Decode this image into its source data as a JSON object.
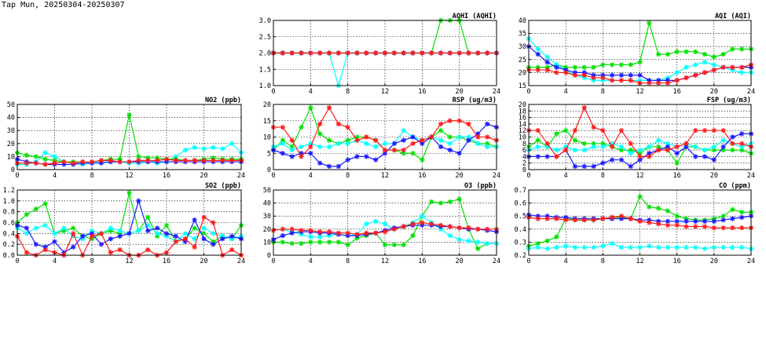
{
  "page": {
    "title": "Tap Mun, 20250304-20250307"
  },
  "colors": {
    "green": "#00e000",
    "red": "#ff1a1a",
    "blue": "#1a1aff",
    "cyan": "#00ffff"
  },
  "chart_data": [
    {
      "type": "line",
      "title": "AQHI (AQHI)",
      "xlim": [
        0,
        24
      ],
      "ylim": [
        1.0,
        3.0
      ],
      "xticks": [
        0,
        4,
        8,
        12,
        16,
        20,
        24
      ],
      "yticks": [
        1.0,
        1.5,
        2.0,
        2.5,
        3.0
      ],
      "ytick_decimals": 1,
      "grid": true,
      "series": [
        {
          "color": "green",
          "values": [
            2,
            2,
            2,
            2,
            2,
            2,
            2,
            2,
            2,
            2,
            2,
            2,
            2,
            2,
            2,
            2,
            2,
            2,
            3,
            3,
            3,
            2,
            2,
            2,
            2
          ]
        },
        {
          "color": "cyan",
          "values": [
            2,
            2,
            2,
            2,
            2,
            2,
            2,
            1,
            2,
            2,
            2,
            2,
            2,
            2,
            2,
            2,
            2,
            2,
            2,
            2,
            2,
            2,
            2,
            2,
            2
          ]
        },
        {
          "color": "blue",
          "values": [
            2,
            2,
            2,
            2,
            2,
            2,
            2,
            2,
            2,
            2,
            2,
            2,
            2,
            2,
            2,
            2,
            2,
            2,
            2,
            2,
            2,
            2,
            2,
            2,
            2
          ]
        },
        {
          "color": "red",
          "values": [
            2,
            2,
            2,
            2,
            2,
            2,
            2,
            2,
            2,
            2,
            2,
            2,
            2,
            2,
            2,
            2,
            2,
            2,
            2,
            2,
            2,
            2,
            2,
            2,
            2
          ]
        }
      ]
    },
    {
      "type": "line",
      "title": "AQI (AQI)",
      "xlim": [
        0,
        24
      ],
      "ylim": [
        15,
        40
      ],
      "xticks": [
        0,
        4,
        8,
        12,
        16,
        20,
        24
      ],
      "yticks": [
        15,
        20,
        25,
        30,
        35,
        40
      ],
      "ytick_decimals": 0,
      "grid": true,
      "series": [
        {
          "color": "green",
          "values": [
            22,
            22,
            22,
            23,
            22,
            22,
            22,
            22,
            23,
            23,
            23,
            23,
            24,
            39,
            27,
            27,
            28,
            28,
            28,
            27,
            26,
            27,
            29,
            29,
            29
          ]
        },
        {
          "color": "cyan",
          "values": [
            33,
            29,
            26,
            23,
            21,
            19,
            18,
            17,
            17,
            17,
            17,
            17,
            17,
            17,
            17,
            18,
            20,
            22,
            23,
            24,
            23,
            22,
            21,
            20,
            20
          ]
        },
        {
          "color": "blue",
          "values": [
            30,
            27,
            24,
            22,
            21,
            20,
            20,
            19,
            19,
            19,
            19,
            19,
            19,
            17,
            17,
            17,
            17,
            18,
            19,
            20,
            21,
            22,
            22,
            22,
            22
          ]
        },
        {
          "color": "red",
          "values": [
            21,
            21,
            21,
            20,
            20,
            19,
            19,
            18,
            18,
            17,
            17,
            17,
            16,
            16,
            16,
            16,
            17,
            18,
            19,
            20,
            21,
            22,
            22,
            22,
            23
          ]
        }
      ]
    },
    {
      "type": "line",
      "title": "NO2 (ppb)",
      "xlim": [
        0,
        24
      ],
      "ylim": [
        0,
        50
      ],
      "xticks": [
        0,
        4,
        8,
        12,
        16,
        20,
        24
      ],
      "yticks": [
        0,
        10,
        20,
        30,
        40,
        50
      ],
      "ytick_decimals": 0,
      "grid": true,
      "series": [
        {
          "color": "cyan",
          "values": [
            4,
            4,
            6,
            13,
            10,
            6,
            5,
            4,
            5,
            6,
            6,
            6,
            5,
            5,
            6,
            5,
            6,
            10,
            15,
            17,
            16,
            17,
            16,
            20,
            13
          ]
        },
        {
          "color": "green",
          "values": [
            13,
            11,
            10,
            8,
            7,
            6,
            6,
            6,
            6,
            7,
            8,
            8,
            42,
            10,
            9,
            9,
            8,
            8,
            7,
            7,
            8,
            9,
            8,
            8,
            8
          ]
        },
        {
          "color": "blue",
          "values": [
            8,
            6,
            5,
            4,
            4,
            4,
            4,
            5,
            5,
            5,
            6,
            6,
            6,
            6,
            6,
            6,
            6,
            6,
            6,
            6,
            6,
            6,
            6,
            6,
            6
          ]
        },
        {
          "color": "red",
          "values": [
            5,
            5,
            5,
            4,
            5,
            6,
            5,
            6,
            6,
            7,
            7,
            6,
            6,
            7,
            7,
            7,
            8,
            7,
            7,
            7,
            7,
            7,
            7,
            7,
            7
          ]
        }
      ]
    },
    {
      "type": "line",
      "title": "RSP (ug/m3)",
      "xlim": [
        0,
        24
      ],
      "ylim": [
        0,
        20
      ],
      "xticks": [
        0,
        4,
        8,
        12,
        16,
        20,
        24
      ],
      "yticks": [
        0,
        5,
        10,
        15,
        20
      ],
      "ytick_decimals": 0,
      "grid": true,
      "series": [
        {
          "color": "green",
          "values": [
            6,
            9,
            7,
            13,
            19,
            11,
            9,
            8,
            9,
            10,
            10,
            9,
            6,
            6,
            5,
            5,
            3,
            10,
            12,
            10,
            10,
            9,
            8,
            8,
            7
          ]
        },
        {
          "color": "cyan",
          "values": [
            7,
            8,
            6,
            7,
            8,
            7,
            7,
            8,
            8,
            9,
            8,
            7,
            8,
            8,
            12,
            10,
            9,
            10,
            9,
            8,
            10,
            10,
            8,
            7,
            7
          ]
        },
        {
          "color": "blue",
          "values": [
            6,
            5,
            4,
            5,
            5,
            2,
            1,
            1,
            3,
            4,
            4,
            3,
            5,
            8,
            9,
            10,
            8,
            10,
            7,
            6,
            5,
            9,
            11,
            14,
            13
          ]
        },
        {
          "color": "red",
          "values": [
            13,
            13,
            9,
            4,
            7,
            14,
            19,
            14,
            13,
            9,
            10,
            9,
            6,
            6,
            6,
            8,
            9,
            10,
            14,
            15,
            15,
            14,
            10,
            10,
            9
          ]
        }
      ]
    },
    {
      "type": "line",
      "title": "FSP (ug/m3)",
      "xlim": [
        0,
        24
      ],
      "ylim": [
        0,
        20
      ],
      "xticks": [
        0,
        4,
        8,
        12,
        16,
        20,
        24
      ],
      "yticks": [
        0,
        2,
        4,
        6,
        8,
        10,
        12,
        14,
        16,
        18,
        20
      ],
      "ytick_decimals": 0,
      "grid": true,
      "series": [
        {
          "color": "green",
          "values": [
            7,
            9,
            7,
            11,
            12,
            9,
            8,
            8,
            8,
            7,
            6,
            6,
            5,
            7,
            7,
            6,
            2,
            7,
            7,
            6,
            6,
            6,
            6,
            6,
            5
          ]
        },
        {
          "color": "cyan",
          "values": [
            6,
            7,
            7,
            6,
            7,
            6,
            6,
            7,
            7,
            8,
            7,
            5,
            6,
            7,
            9,
            8,
            7,
            8,
            7,
            6,
            7,
            9,
            8,
            7,
            8
          ]
        },
        {
          "color": "blue",
          "values": [
            4,
            4,
            4,
            4,
            6,
            1,
            1,
            1,
            2,
            3,
            3,
            1,
            3,
            5,
            6,
            7,
            5,
            7,
            4,
            4,
            3,
            7,
            10,
            11,
            11
          ]
        },
        {
          "color": "red",
          "values": [
            12,
            12,
            8,
            4,
            6,
            12,
            19,
            13,
            12,
            7,
            12,
            8,
            4,
            4,
            6,
            6,
            7,
            8,
            12,
            12,
            12,
            12,
            8,
            8,
            7
          ]
        }
      ]
    },
    {
      "type": "line",
      "title": "SO2 (ppb)",
      "xlim": [
        0,
        24
      ],
      "ylim": [
        0.0,
        1.2
      ],
      "xticks": [
        0,
        4,
        8,
        12,
        16,
        20,
        24
      ],
      "yticks": [
        0.0,
        0.2,
        0.4,
        0.6,
        0.8,
        1.0,
        1.2
      ],
      "ytick_decimals": 1,
      "grid": true,
      "series": [
        {
          "color": "green",
          "values": [
            0.6,
            0.75,
            0.85,
            0.95,
            0.4,
            0.45,
            0.5,
            0.35,
            0.3,
            0.4,
            0.45,
            0.4,
            1.15,
            0.45,
            0.7,
            0.35,
            0.55,
            0.25,
            0.3,
            0.5,
            0.4,
            0.25,
            0.35,
            0.3,
            0.55
          ]
        },
        {
          "color": "cyan",
          "values": [
            0.5,
            0.4,
            0.5,
            0.55,
            0.4,
            0.5,
            0.35,
            0.3,
            0.45,
            0.4,
            0.5,
            0.45,
            0.4,
            0.45,
            0.55,
            0.4,
            0.35,
            0.25,
            0.4,
            0.3,
            0.5,
            0.4,
            0.35,
            0.3,
            0.35
          ]
        },
        {
          "color": "blue",
          "values": [
            0.55,
            0.5,
            0.2,
            0.15,
            0.25,
            0.05,
            0.15,
            0.35,
            0.4,
            0.2,
            0.3,
            0.35,
            0.4,
            1.0,
            0.45,
            0.5,
            0.4,
            0.35,
            0.25,
            0.65,
            0.3,
            0.2,
            0.3,
            0.35,
            0.3
          ]
        },
        {
          "color": "red",
          "values": [
            0.35,
            0.05,
            0.0,
            0.1,
            0.05,
            0.0,
            0.4,
            0.0,
            0.35,
            0.4,
            0.05,
            0.1,
            0.0,
            0.0,
            0.1,
            0.0,
            0.05,
            0.25,
            0.3,
            0.15,
            0.7,
            0.6,
            0.0,
            0.1,
            0.0
          ]
        }
      ]
    },
    {
      "type": "line",
      "title": "O3 (ppb)",
      "xlim": [
        0,
        24
      ],
      "ylim": [
        0,
        50
      ],
      "xticks": [
        0,
        4,
        8,
        12,
        16,
        20,
        24
      ],
      "yticks": [
        0,
        10,
        20,
        30,
        40,
        50
      ],
      "ytick_decimals": 0,
      "grid": true,
      "series": [
        {
          "color": "green",
          "values": [
            10,
            10,
            9,
            9,
            10,
            10,
            10,
            10,
            8,
            13,
            15,
            17,
            8,
            8,
            8,
            15,
            30,
            41,
            40,
            41,
            43,
            20,
            5,
            9,
            9
          ]
        },
        {
          "color": "cyan",
          "values": [
            19,
            20,
            18,
            16,
            14,
            14,
            15,
            16,
            15,
            16,
            24,
            26,
            24,
            20,
            22,
            25,
            30,
            25,
            20,
            15,
            12,
            11,
            10,
            9,
            9
          ]
        },
        {
          "color": "blue",
          "values": [
            12,
            15,
            17,
            18,
            18,
            17,
            17,
            16,
            15,
            15,
            16,
            17,
            19,
            21,
            22,
            23,
            23,
            23,
            22,
            22,
            21,
            20,
            20,
            19,
            18
          ]
        },
        {
          "color": "red",
          "values": [
            19,
            20,
            20,
            19,
            19,
            18,
            18,
            17,
            17,
            16,
            17,
            17,
            18,
            20,
            22,
            24,
            25,
            24,
            23,
            22,
            21,
            21,
            20,
            20,
            20
          ]
        }
      ]
    },
    {
      "type": "line",
      "title": "CO (ppm)",
      "xlim": [
        0,
        24
      ],
      "ylim": [
        0.2,
        0.7
      ],
      "xticks": [
        0,
        4,
        8,
        12,
        16,
        20,
        24
      ],
      "yticks": [
        0.2,
        0.3,
        0.4,
        0.5,
        0.6,
        0.7
      ],
      "ytick_decimals": 1,
      "grid": true,
      "series": [
        {
          "color": "green",
          "values": [
            0.27,
            0.29,
            0.31,
            0.34,
            0.48,
            0.47,
            0.47,
            0.47,
            0.48,
            0.49,
            0.49,
            0.48,
            0.65,
            0.57,
            0.56,
            0.54,
            0.5,
            0.48,
            0.47,
            0.47,
            0.48,
            0.5,
            0.55,
            0.53,
            0.53
          ]
        },
        {
          "color": "cyan",
          "values": [
            0.25,
            0.26,
            0.25,
            0.26,
            0.27,
            0.26,
            0.26,
            0.26,
            0.27,
            0.29,
            0.26,
            0.26,
            0.26,
            0.27,
            0.26,
            0.26,
            0.26,
            0.26,
            0.26,
            0.25,
            0.26,
            0.26,
            0.26,
            0.26,
            0.25
          ]
        },
        {
          "color": "blue",
          "values": [
            0.51,
            0.5,
            0.5,
            0.49,
            0.49,
            0.48,
            0.48,
            0.48,
            0.48,
            0.48,
            0.48,
            0.48,
            0.47,
            0.47,
            0.46,
            0.46,
            0.46,
            0.46,
            0.46,
            0.46,
            0.46,
            0.47,
            0.48,
            0.49,
            0.5
          ]
        },
        {
          "color": "red",
          "values": [
            0.49,
            0.48,
            0.48,
            0.48,
            0.47,
            0.47,
            0.47,
            0.47,
            0.48,
            0.49,
            0.5,
            0.48,
            0.46,
            0.45,
            0.44,
            0.43,
            0.43,
            0.42,
            0.42,
            0.42,
            0.41,
            0.41,
            0.41,
            0.41,
            0.41
          ]
        }
      ]
    }
  ]
}
